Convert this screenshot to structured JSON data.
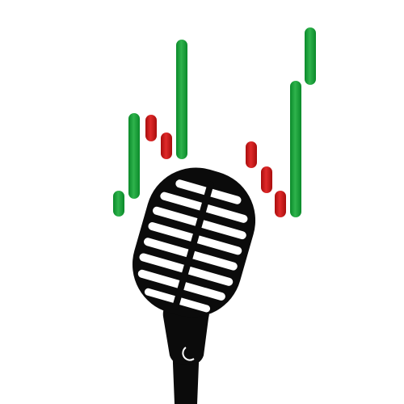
{
  "artwork": {
    "icon": "microphone-with-candlestick-bars-logo",
    "colors": {
      "background": "#ffffff",
      "bar_up": "#0a8a2a",
      "bar_up_light": "#2fb34c",
      "bar_down": "#a80d0d",
      "bar_down_light": "#e02a2a",
      "microphone": "#0b0b0b",
      "microphone_highlight": "#4a4a4a"
    },
    "bars": [
      {
        "direction": "up"
      },
      {
        "direction": "up"
      },
      {
        "direction": "down"
      },
      {
        "direction": "down"
      },
      {
        "direction": "up"
      },
      {
        "direction": "down"
      },
      {
        "direction": "down"
      },
      {
        "direction": "down"
      },
      {
        "direction": "up"
      },
      {
        "direction": "up"
      }
    ]
  }
}
